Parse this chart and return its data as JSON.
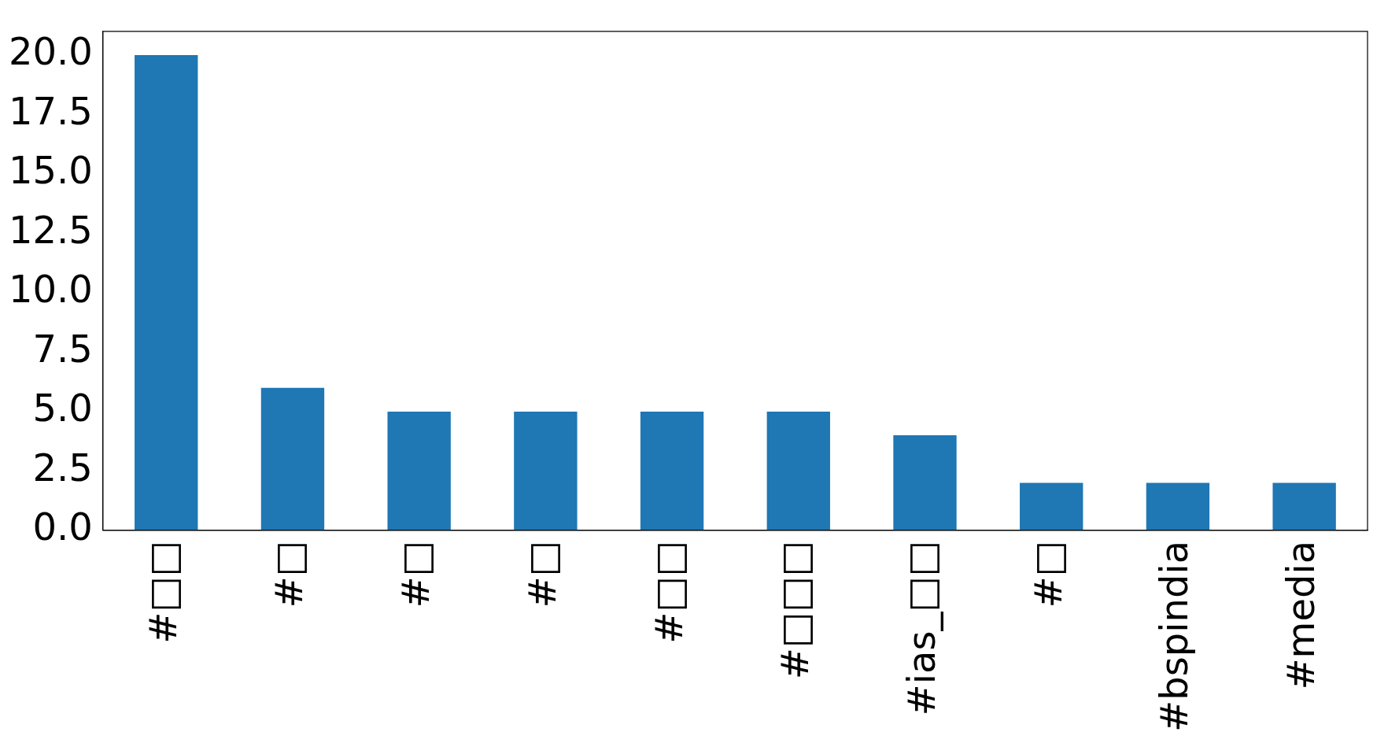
{
  "chart_data": {
    "type": "bar",
    "categories": [
      "#□□",
      "#□",
      "#□",
      "#□",
      "#□□",
      "#□□□",
      "#ias_□□",
      "#□",
      "#bspindia",
      "#media"
    ],
    "values": [
      20,
      6,
      5,
      5,
      5,
      5,
      4,
      2,
      2,
      2
    ],
    "color": "#1f77b4",
    "ylim": [
      0,
      21
    ],
    "yticks": [
      {
        "value": 0,
        "label": "0.0"
      },
      {
        "value": 2.5,
        "label": "2.5"
      },
      {
        "value": 5,
        "label": "5.0"
      },
      {
        "value": 7.5,
        "label": "7.5"
      },
      {
        "value": 10,
        "label": "10.0"
      },
      {
        "value": 12.5,
        "label": "12.5"
      },
      {
        "value": 15,
        "label": "15.0"
      },
      {
        "value": 17.5,
        "label": "17.5"
      },
      {
        "value": 20,
        "label": "20.0"
      }
    ],
    "grid": false,
    "legend": false
  }
}
